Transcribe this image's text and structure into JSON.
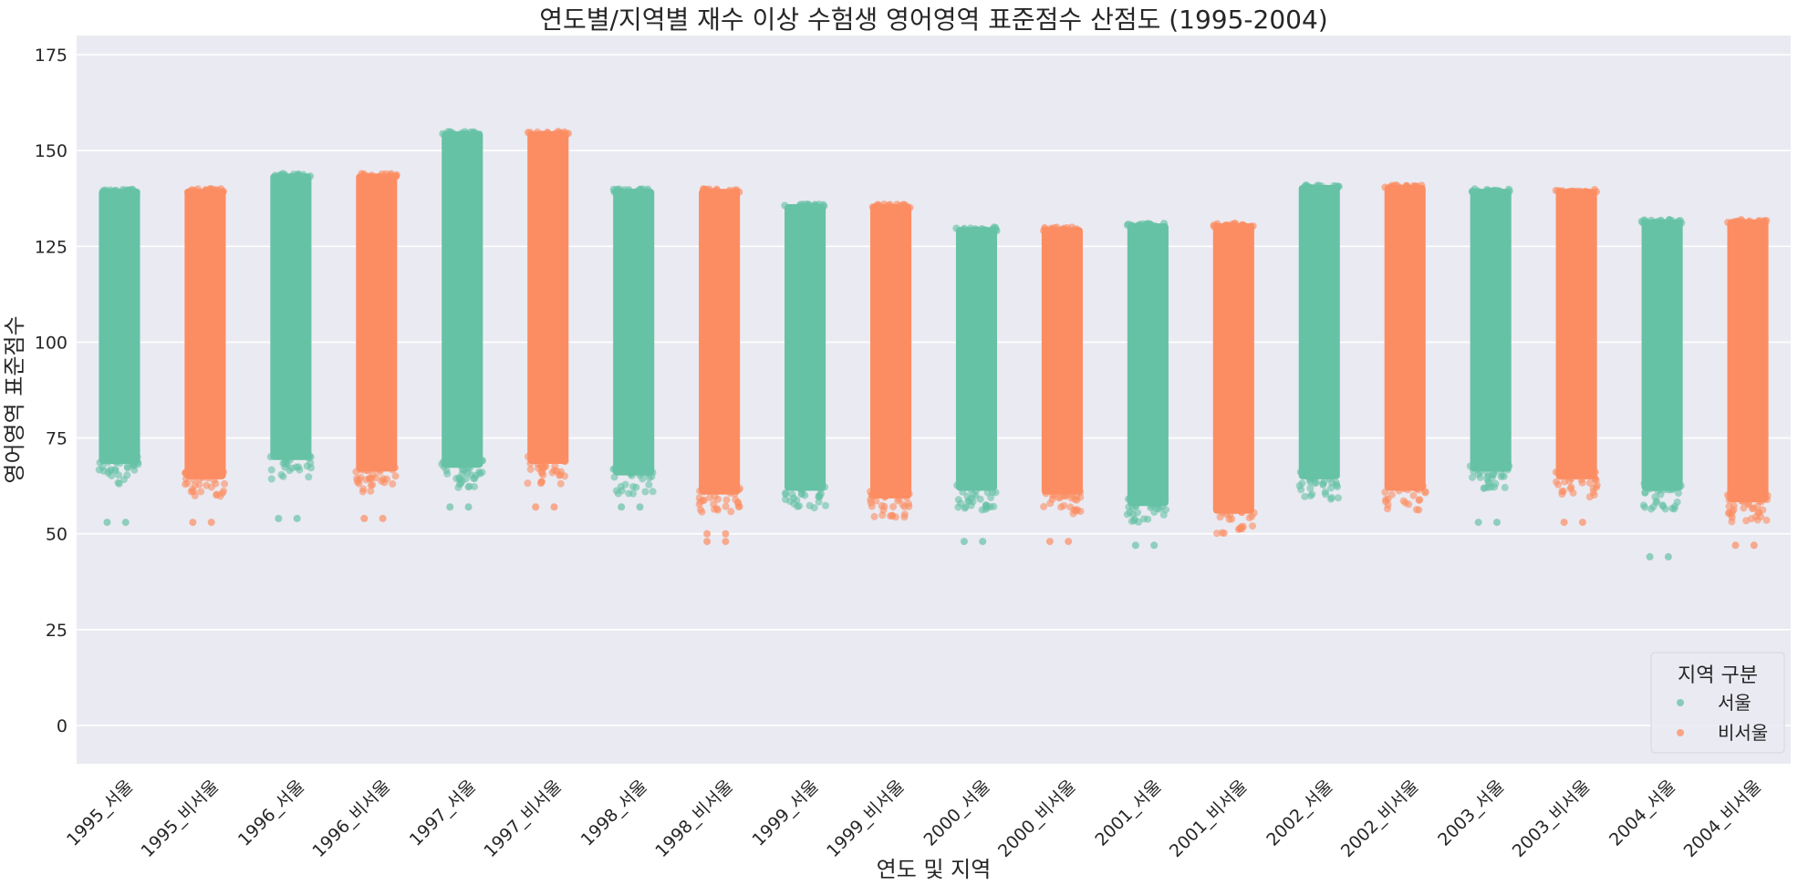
{
  "chart_data": {
    "type": "scatter",
    "subtype": "strip",
    "title": "연도별/지역별 재수 이상 수험생 영어영역 표준점수 산점도 (1995-2004)",
    "xlabel": "연도 및 지역",
    "ylabel": "영어영역 표준점수",
    "ylim": [
      -10,
      180
    ],
    "yticks": [
      0,
      25,
      50,
      75,
      100,
      125,
      150,
      175
    ],
    "grid": true,
    "legend": {
      "title": "지역 구분",
      "placement": "bottom-right"
    },
    "categories": [
      "1995_서울",
      "1995_비서울",
      "1996_서울",
      "1996_비서울",
      "1997_서울",
      "1997_비서울",
      "1998_서울",
      "1998_비서울",
      "1999_서울",
      "1999_비서울",
      "2000_서울",
      "2000_비서울",
      "2001_서울",
      "2001_비서울",
      "2002_서울",
      "2002_비서울",
      "2003_서울",
      "2003_비서울",
      "2004_서울",
      "2004_비서울"
    ],
    "series": [
      {
        "name": "서울",
        "color": "#66c2a5",
        "strips": [
          {
            "category": "1995_서울",
            "min": 63,
            "max": 140,
            "outliers": [
              53
            ]
          },
          {
            "category": "1996_서울",
            "min": 64,
            "max": 144,
            "outliers": [
              54
            ]
          },
          {
            "category": "1997_서울",
            "min": 62,
            "max": 155,
            "outliers": [
              57
            ]
          },
          {
            "category": "1998_서울",
            "min": 60,
            "max": 140,
            "outliers": [
              57
            ]
          },
          {
            "category": "1999_서울",
            "min": 56,
            "max": 136,
            "outliers": []
          },
          {
            "category": "2000_서울",
            "min": 56,
            "max": 130,
            "outliers": [
              48
            ]
          },
          {
            "category": "2001_서울",
            "min": 52,
            "max": 131,
            "outliers": [
              47
            ]
          },
          {
            "category": "2002_서울",
            "min": 59,
            "max": 141,
            "outliers": []
          },
          {
            "category": "2003_서울",
            "min": 61,
            "max": 140,
            "outliers": [
              53
            ]
          },
          {
            "category": "2004_서울",
            "min": 56,
            "max": 132,
            "outliers": [
              44
            ]
          }
        ]
      },
      {
        "name": "비서울",
        "color": "#fc8d62",
        "strips": [
          {
            "category": "1995_비서울",
            "min": 59,
            "max": 140,
            "outliers": [
              53
            ]
          },
          {
            "category": "1996_비서울",
            "min": 61,
            "max": 144,
            "outliers": [
              54
            ]
          },
          {
            "category": "1997_비서울",
            "min": 63,
            "max": 155,
            "outliers": [
              57
            ]
          },
          {
            "category": "1998_비서울",
            "min": 55,
            "max": 140,
            "outliers": [
              48,
              50
            ]
          },
          {
            "category": "1999_비서울",
            "min": 54,
            "max": 136,
            "outliers": []
          },
          {
            "category": "2000_비서울",
            "min": 55,
            "max": 130,
            "outliers": [
              48
            ]
          },
          {
            "category": "2001_비서울",
            "min": 50,
            "max": 131,
            "outliers": []
          },
          {
            "category": "2002_비서울",
            "min": 56,
            "max": 141,
            "outliers": []
          },
          {
            "category": "2003_비서울",
            "min": 59,
            "max": 140,
            "outliers": [
              53
            ]
          },
          {
            "category": "2004_비서울",
            "min": 53,
            "max": 132,
            "outliers": [
              47
            ]
          }
        ]
      }
    ]
  },
  "colors": {
    "background": "#eaeaf2",
    "grid": "#ffffff"
  }
}
